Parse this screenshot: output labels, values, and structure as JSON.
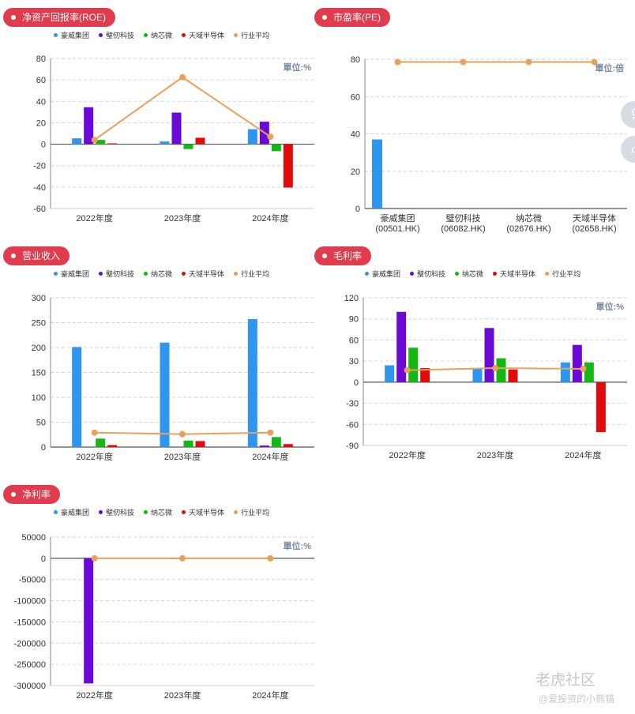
{
  "colors": {
    "series": [
      "#2f96f0",
      "#6b0ad6",
      "#14b814",
      "#e00b0b",
      "#e8a15a"
    ],
    "pill": "#e03c4e"
  },
  "watermark": {
    "logo": "老虎社区",
    "sub": "@爱投资的小熊猫"
  },
  "chart_data": [
    {
      "id": "roe",
      "title": "净资产回报率(ROE)",
      "type": "bar",
      "unit_label": "單位:%",
      "categories": [
        "2022年度",
        "2023年度",
        "2024年度"
      ],
      "ylim": [
        -60,
        80
      ],
      "yticks": [
        80,
        60,
        40,
        20,
        0,
        -20,
        -40,
        -60
      ],
      "grid": true,
      "legend": "top",
      "series": [
        {
          "name": "豪威集团",
          "values": [
            5.5,
            2.5,
            14
          ]
        },
        {
          "name": "璧仞科技",
          "values": [
            34.5,
            29.5,
            21
          ]
        },
        {
          "name": "纳芯微",
          "values": [
            4,
            -4.5,
            -6.5
          ]
        },
        {
          "name": "天域半导体",
          "values": [
            0.8,
            6,
            -40.5
          ]
        }
      ],
      "line": {
        "name": "行业平均",
        "values": [
          4,
          62.5,
          7
        ]
      }
    },
    {
      "id": "pe",
      "title": "市盈率(PE)",
      "type": "bar",
      "unit_label": "單位:倍",
      "categories": [
        "豪威集团\n(00501.HK)",
        "璧仞科技\n(06082.HK)",
        "纳芯微\n(02676.HK)",
        "天域半导体\n(02658.HK)"
      ],
      "ylim": [
        0,
        80
      ],
      "yticks": [
        80,
        60,
        40,
        20,
        0
      ],
      "grid": true,
      "legend": "none",
      "series": [
        {
          "name": "",
          "values": [
            37,
            0,
            0,
            0
          ]
        }
      ],
      "line": {
        "name": "行业平均",
        "values": [
          78.5,
          78.5,
          78.5,
          78.5
        ]
      }
    },
    {
      "id": "revenue",
      "title": "营业收入",
      "type": "bar",
      "unit_label": "",
      "categories": [
        "2022年度",
        "2023年度",
        "2024年度"
      ],
      "ylim": [
        0,
        300
      ],
      "yticks": [
        300,
        250,
        200,
        150,
        100,
        50,
        0
      ],
      "grid": true,
      "legend": "top",
      "series": [
        {
          "name": "豪威集团",
          "values": [
            201,
            210,
            257
          ]
        },
        {
          "name": "璧仞科技",
          "values": [
            0,
            0,
            3
          ]
        },
        {
          "name": "纳芯微",
          "values": [
            17,
            13,
            20
          ]
        },
        {
          "name": "天域半导体",
          "values": [
            4,
            12,
            6
          ]
        }
      ],
      "line": {
        "name": "行业平均",
        "values": [
          29,
          26,
          29
        ]
      }
    },
    {
      "id": "gross_margin",
      "title": "毛利率",
      "type": "bar",
      "unit_label": "單位:%",
      "categories": [
        "2022年度",
        "2023年度",
        "2024年度"
      ],
      "ylim": [
        -90,
        120
      ],
      "yticks": [
        120,
        90,
        60,
        30,
        0,
        -30,
        -60,
        -90
      ],
      "grid": true,
      "legend": "top",
      "series": [
        {
          "name": "豪威集团",
          "values": [
            24,
            19,
            28
          ]
        },
        {
          "name": "璧仞科技",
          "values": [
            100,
            77,
            53
          ]
        },
        {
          "name": "纳芯微",
          "values": [
            49,
            34,
            28
          ]
        },
        {
          "name": "天域半导体",
          "values": [
            20,
            18,
            -71
          ]
        }
      ],
      "line": {
        "name": "行业平均",
        "values": [
          17,
          20,
          19
        ]
      }
    },
    {
      "id": "net_margin",
      "title": "净利率",
      "type": "bar",
      "unit_label": "單位:%",
      "categories": [
        "2022年度",
        "2023年度",
        "2024年度"
      ],
      "ylim": [
        -300000,
        50000
      ],
      "yticks": [
        50000,
        0,
        -50000,
        -100000,
        -150000,
        -200000,
        -250000,
        -300000
      ],
      "grid": true,
      "legend": "top",
      "series": [
        {
          "name": "豪威集团",
          "values": [
            0,
            0,
            0
          ]
        },
        {
          "name": "璧仞科技",
          "values": [
            -295000,
            -700,
            0
          ]
        },
        {
          "name": "纳芯微",
          "values": [
            0,
            0,
            0
          ]
        },
        {
          "name": "天域半导体",
          "values": [
            0,
            0,
            0
          ]
        }
      ],
      "line": {
        "name": "行业平均",
        "values": [
          0,
          0,
          0
        ]
      }
    }
  ]
}
